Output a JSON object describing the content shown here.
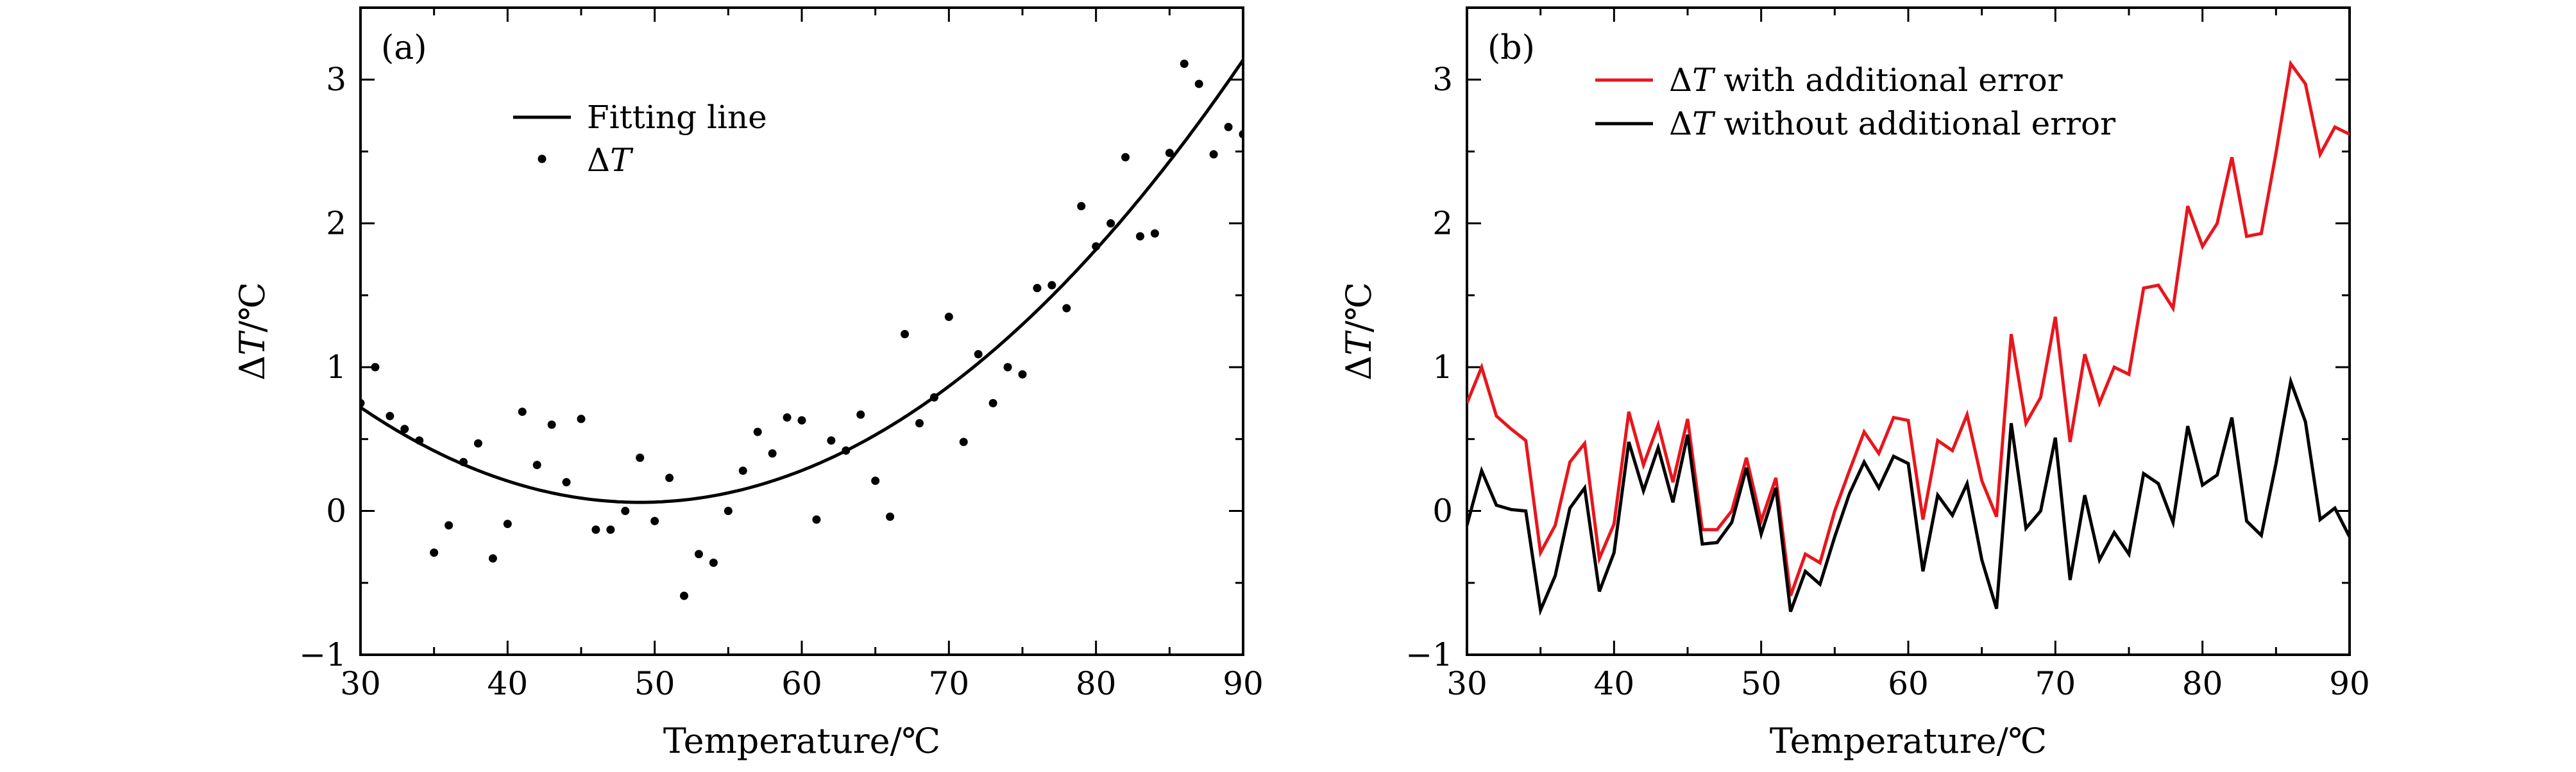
{
  "chart_data": [
    {
      "panel": "(a)",
      "type": "scatter",
      "xlabel": "Temperature/℃",
      "ylabel": "ΔT/℃",
      "xlim": [
        30,
        90
      ],
      "ylim": [
        -1,
        3.5
      ],
      "xticks": [
        30,
        40,
        50,
        60,
        70,
        80,
        90
      ],
      "yticks": [
        -1,
        0,
        1,
        2,
        3
      ],
      "legend_position": "upper-center",
      "grid": false,
      "series": [
        {
          "name": "Fitting line",
          "kind": "line",
          "color": "#000000",
          "fit": {
            "form": "quadratic",
            "vertex_x": 49,
            "vertex_y": 0.06,
            "curvature": 0.00183
          }
        },
        {
          "name": "ΔT",
          "kind": "points",
          "color": "#000000",
          "x": [
            30,
            31,
            32,
            33,
            34,
            35,
            36,
            37,
            38,
            39,
            40,
            41,
            42,
            43,
            44,
            45,
            46,
            47,
            48,
            49,
            50,
            51,
            52,
            53,
            54,
            55,
            56,
            57,
            58,
            59,
            60,
            61,
            62,
            63,
            64,
            65,
            66,
            67,
            68,
            69,
            70,
            71,
            72,
            73,
            74,
            75,
            76,
            77,
            78,
            79,
            80,
            81,
            82,
            83,
            84,
            85,
            86,
            87,
            88,
            89,
            90
          ],
          "y": [
            0.75,
            1.0,
            0.66,
            0.57,
            0.49,
            -0.29,
            -0.1,
            0.34,
            0.47,
            -0.33,
            -0.09,
            0.69,
            0.32,
            0.6,
            0.2,
            0.64,
            -0.13,
            -0.13,
            0.0,
            0.37,
            -0.07,
            0.23,
            -0.59,
            -0.3,
            -0.36,
            0.0,
            0.28,
            0.55,
            0.4,
            0.65,
            0.63,
            -0.06,
            0.49,
            0.42,
            0.67,
            0.21,
            -0.04,
            1.23,
            0.61,
            0.79,
            1.35,
            0.48,
            1.09,
            0.75,
            1.0,
            0.95,
            1.55,
            1.57,
            1.41,
            2.12,
            1.84,
            2.0,
            2.46,
            1.91,
            1.93,
            2.49,
            3.11,
            2.97,
            2.48,
            2.67,
            2.62
          ]
        }
      ]
    },
    {
      "panel": "(b)",
      "type": "line",
      "xlabel": "Temperature/℃",
      "ylabel": "ΔT/℃",
      "xlim": [
        30,
        90
      ],
      "ylim": [
        -1,
        3.5
      ],
      "xticks": [
        30,
        40,
        50,
        60,
        70,
        80,
        90
      ],
      "yticks": [
        -1,
        0,
        1,
        2,
        3
      ],
      "legend_position": "upper-center",
      "grid": false,
      "x": [
        30,
        31,
        32,
        33,
        34,
        35,
        36,
        37,
        38,
        39,
        40,
        41,
        42,
        43,
        44,
        45,
        46,
        47,
        48,
        49,
        50,
        51,
        52,
        53,
        54,
        55,
        56,
        57,
        58,
        59,
        60,
        61,
        62,
        63,
        64,
        65,
        66,
        67,
        68,
        69,
        70,
        71,
        72,
        73,
        74,
        75,
        76,
        77,
        78,
        79,
        80,
        81,
        82,
        83,
        84,
        85,
        86,
        87,
        88,
        89,
        90
      ],
      "series": [
        {
          "name": "ΔT with additional error",
          "color": "#e8161c",
          "values": [
            0.75,
            1.0,
            0.66,
            0.57,
            0.49,
            -0.29,
            -0.1,
            0.34,
            0.47,
            -0.33,
            -0.09,
            0.69,
            0.32,
            0.6,
            0.2,
            0.64,
            -0.13,
            -0.13,
            0.0,
            0.37,
            -0.07,
            0.23,
            -0.59,
            -0.3,
            -0.36,
            0.0,
            0.28,
            0.55,
            0.4,
            0.65,
            0.63,
            -0.06,
            0.49,
            0.42,
            0.67,
            0.21,
            -0.04,
            1.23,
            0.61,
            0.79,
            1.35,
            0.48,
            1.09,
            0.75,
            1.0,
            0.95,
            1.55,
            1.57,
            1.41,
            2.12,
            1.84,
            2.0,
            2.46,
            1.91,
            1.93,
            2.49,
            3.11,
            2.97,
            2.48,
            2.67,
            2.62
          ]
        },
        {
          "name": "ΔT without additional error",
          "color": "#000000",
          "values": [
            -0.1,
            0.28,
            0.04,
            0.01,
            0.0,
            -0.69,
            -0.45,
            0.02,
            0.16,
            -0.56,
            -0.29,
            0.48,
            0.14,
            0.44,
            0.06,
            0.53,
            -0.23,
            -0.22,
            -0.08,
            0.3,
            -0.16,
            0.16,
            -0.7,
            -0.42,
            -0.51,
            -0.18,
            0.12,
            0.34,
            0.16,
            0.38,
            0.33,
            -0.42,
            0.11,
            -0.03,
            0.19,
            -0.34,
            -0.68,
            0.61,
            -0.12,
            0.0,
            0.51,
            -0.48,
            0.11,
            -0.34,
            -0.15,
            -0.3,
            0.26,
            0.19,
            -0.08,
            0.59,
            0.18,
            0.25,
            0.65,
            -0.07,
            -0.17,
            0.33,
            0.9,
            0.62,
            -0.06,
            0.02,
            -0.18
          ]
        }
      ]
    }
  ]
}
